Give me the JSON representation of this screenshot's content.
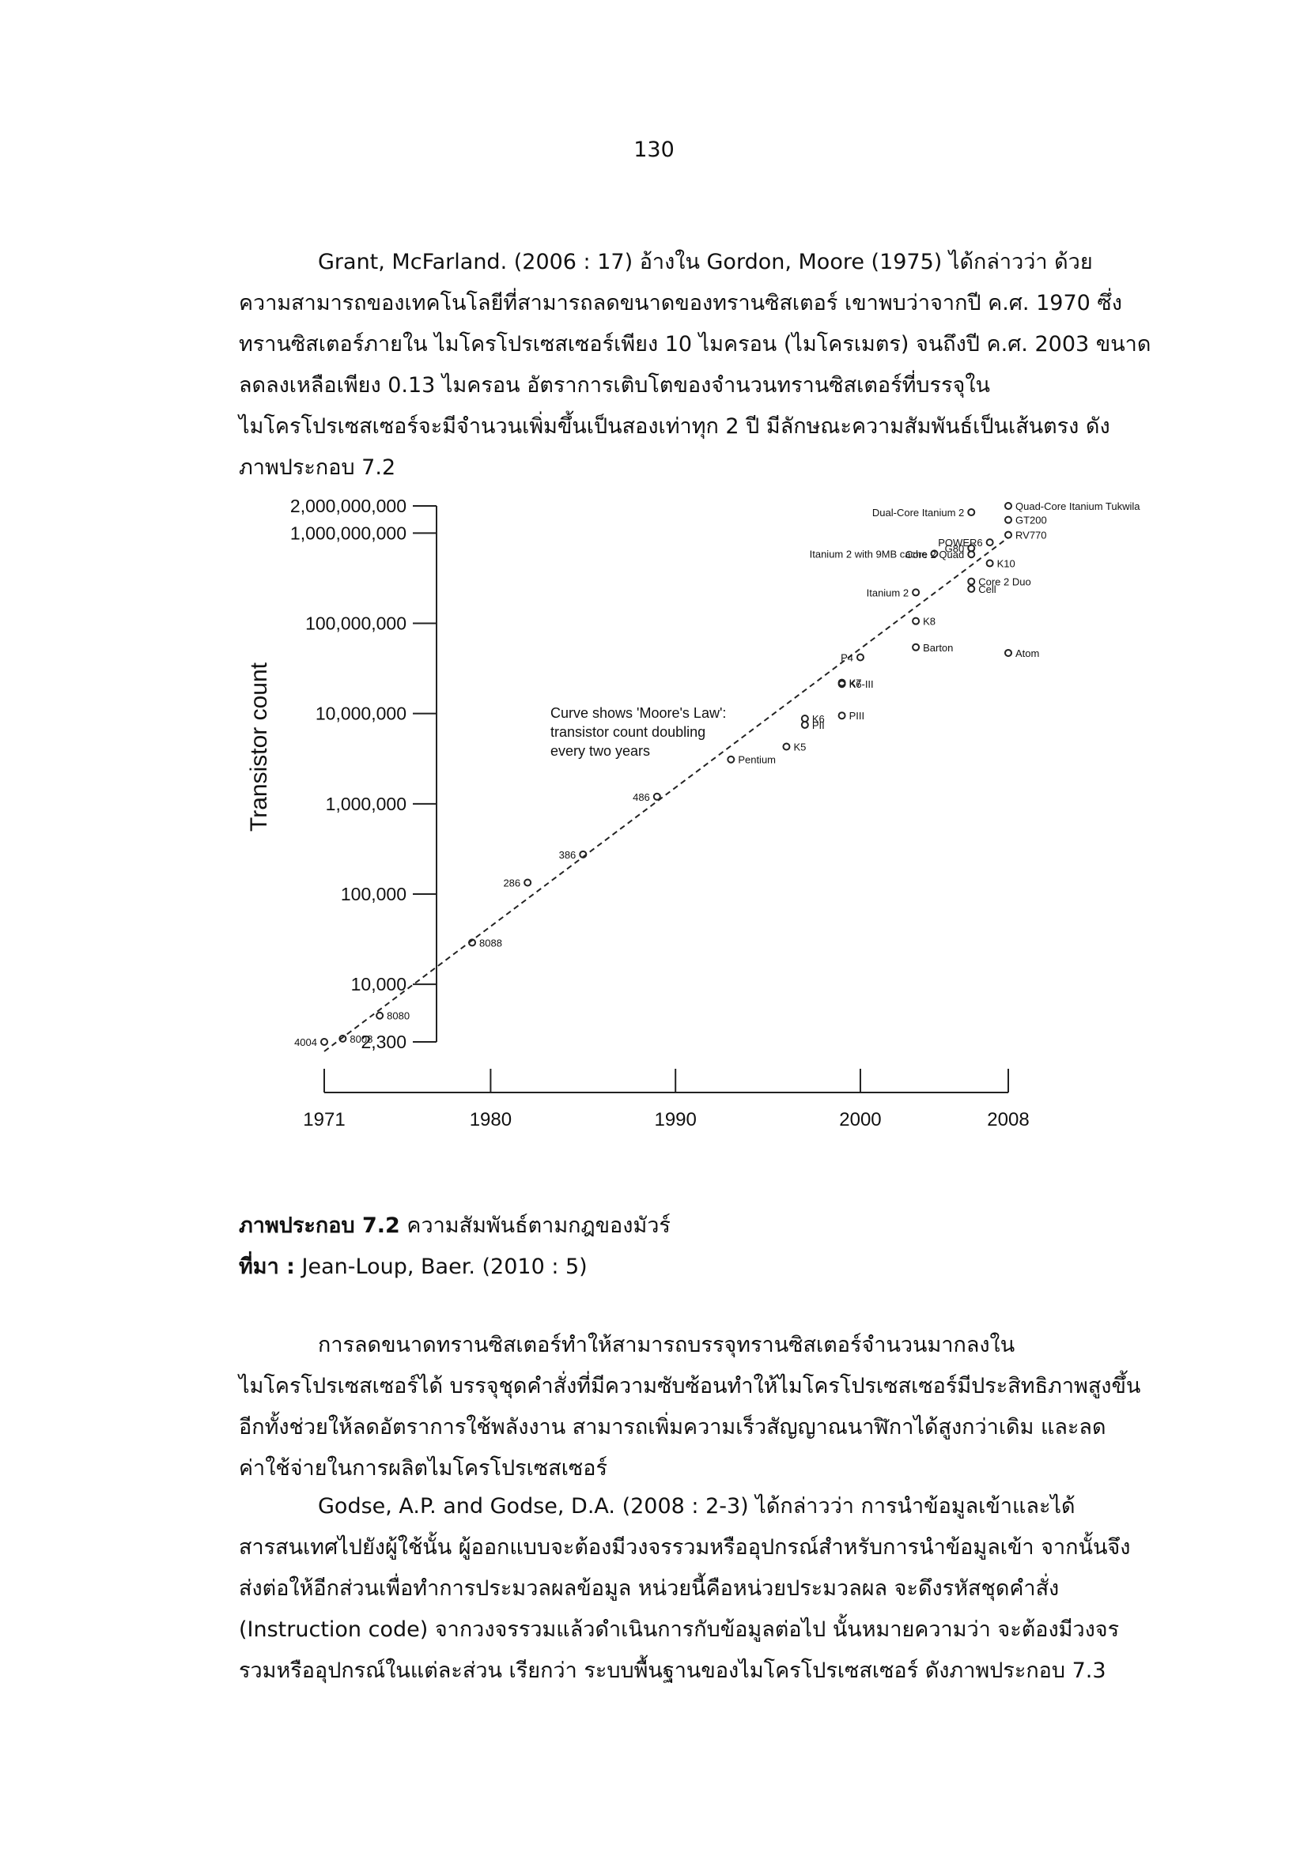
{
  "page_number": "130",
  "paragraph_1": [
    "Grant, McFarland. (2006 : 17) อ้างใน Gordon, Moore (1975) ได้กล่าวว่า ด้วย",
    "ความสามารถของเทคโนโลยีที่สามารถลดขนาดของทรานซิสเตอร์ เขาพบว่าจากปี ค.ศ. 1970 ซึ่ง",
    "ทรานซิสเตอร์ภายใน ไมโครโปรเซสเซอร์เพียง 10 ไมครอน (ไมโครเมตร) จนถึงปี ค.ศ. 2003 ขนาด",
    "ลดลงเหลือเพียง 0.13 ไมครอน อัตราการเติบโตของจำนวนทรานซิสเตอร์ที่บรรจุใน",
    "ไมโครโปรเซสเซอร์จะมีจำนวนเพิ่มขึ้นเป็นสองเท่าทุก 2 ปี มีลักษณะความสัมพันธ์เป็นเส้นตรง ดัง",
    "ภาพประกอบ 7.2"
  ],
  "figure_caption": {
    "label": "ภาพประกอบ 7.2",
    "text": " ความสัมพันธ์ตามกฎของมัวร์"
  },
  "figure_source": {
    "label": "ที่มา :",
    "text": " Jean-Loup, Baer. (2010 : 5)"
  },
  "paragraph_2": [
    "การลดขนาดทรานซิสเตอร์ทำให้สามารถบรรจุทรานซิสเตอร์จำนวนมากลงใน",
    "ไมโครโปรเซสเซอร์ได้ บรรจุชุดคำสั่งที่มีความซับซ้อนทำให้ไมโครโปรเซสเซอร์มีประสิทธิภาพสูงขึ้น",
    "อีกทั้งช่วยให้ลดอัตราการใช้พลังงาน สามารถเพิ่มความเร็วสัญญาณนาฬิกาได้สูงกว่าเดิม และลด",
    "ค่าใช้จ่ายในการผลิตไมโครโปรเซสเซอร์"
  ],
  "paragraph_3": [
    "Godse, A.P. and Godse, D.A. (2008 : 2-3) ได้กล่าวว่า การนำข้อมูลเข้าและได้",
    "สารสนเทศไปยังผู้ใช้นั้น ผู้ออกแบบจะต้องมีวงจรรวมหรืออุปกรณ์สำหรับการนำข้อมูลเข้า จากนั้นจึง",
    "ส่งต่อให้อีกส่วนเพื่อทำการประมวลผลข้อมูล หน่วยนี้คือหน่วยประมวลผล จะดึงรหัสชุดคำสั่ง",
    "(Instruction code) จากวงจรรวมแล้วดำเนินการกับข้อมูลต่อไป นั้นหมายความว่า จะต้องมีวงจร",
    "รวมหรืออุปกรณ์ในแต่ละส่วน เรียกว่า ระบบพื้นฐานของไมโครโปรเซสเซอร์ ดังภาพประกอบ 7.3"
  ],
  "chart_data": {
    "type": "scatter",
    "title": "",
    "xlabel": "",
    "ylabel": "Transistor count",
    "y_scale": "log",
    "xlim": [
      1971,
      2008
    ],
    "ylim": [
      2300,
      2000000000
    ],
    "x_ticks": [
      "1971",
      "1980",
      "1990",
      "2000",
      "2008"
    ],
    "y_ticks": [
      {
        "value": 2000000000,
        "label": "2,000,000,000"
      },
      {
        "value": 1000000000,
        "label": "1,000,000,000"
      },
      {
        "value": 100000000,
        "label": "100,000,000"
      },
      {
        "value": 10000000,
        "label": "10,000,000"
      },
      {
        "value": 1000000,
        "label": "1,000,000"
      },
      {
        "value": 100000,
        "label": "100,000"
      },
      {
        "value": 10000,
        "label": "10,000"
      },
      {
        "value": 2300,
        "label": "2,300"
      }
    ],
    "annotation": [
      "Curve shows 'Moore's Law':",
      "transistor count doubling",
      "every two years"
    ],
    "trend": {
      "style": "dashed",
      "from": {
        "x": 1971,
        "y": 2300
      },
      "to": {
        "x": 2008,
        "y": 2000000000
      }
    },
    "points": [
      {
        "label": "4004",
        "x": 1971,
        "y": 2300,
        "label_side": "left"
      },
      {
        "label": "8008",
        "x": 1972,
        "y": 2500,
        "label_side": "right"
      },
      {
        "label": "8080",
        "x": 1974,
        "y": 4500,
        "label_side": "right"
      },
      {
        "label": "8088",
        "x": 1979,
        "y": 29000,
        "label_side": "right"
      },
      {
        "label": "286",
        "x": 1982,
        "y": 134000,
        "label_side": "left"
      },
      {
        "label": "386",
        "x": 1985,
        "y": 275000,
        "label_side": "left"
      },
      {
        "label": "486",
        "x": 1989,
        "y": 1200000,
        "label_side": "left"
      },
      {
        "label": "Pentium",
        "x": 1993,
        "y": 3100000,
        "label_side": "right"
      },
      {
        "label": "K5",
        "x": 1996,
        "y": 4300000,
        "label_side": "right"
      },
      {
        "label": "K6",
        "x": 1997,
        "y": 8800000,
        "label_side": "right"
      },
      {
        "label": "PII",
        "x": 1997,
        "y": 7500000,
        "label_side": "right"
      },
      {
        "label": "PIII",
        "x": 1999,
        "y": 9500000,
        "label_side": "right"
      },
      {
        "label": "K6-III",
        "x": 1999,
        "y": 21300000,
        "label_side": "right"
      },
      {
        "label": "K7",
        "x": 1999,
        "y": 22000000,
        "label_side": "right"
      },
      {
        "label": "P4",
        "x": 2000,
        "y": 42000000,
        "label_side": "left"
      },
      {
        "label": "Barton",
        "x": 2003,
        "y": 54300000,
        "label_side": "right"
      },
      {
        "label": "K8",
        "x": 2003,
        "y": 105900000,
        "label_side": "right"
      },
      {
        "label": "Itanium 2",
        "x": 2003,
        "y": 220000000,
        "label_side": "left"
      },
      {
        "label": "Atom",
        "x": 2008,
        "y": 47000000,
        "label_side": "right"
      },
      {
        "label": "Cell",
        "x": 2006,
        "y": 241000000,
        "label_side": "right"
      },
      {
        "label": "Core 2 Duo",
        "x": 2006,
        "y": 291000000,
        "label_side": "right"
      },
      {
        "label": "Core 2 Quad",
        "x": 2006,
        "y": 582000000,
        "label_side": "left"
      },
      {
        "label": "K10",
        "x": 2007,
        "y": 463000000,
        "label_side": "right"
      },
      {
        "label": "G80",
        "x": 2006,
        "y": 681000000,
        "label_side": "left"
      },
      {
        "label": "Itanium 2 with 9MB cache",
        "x": 2004,
        "y": 592000000,
        "label_side": "left"
      },
      {
        "label": "POWER6",
        "x": 2007,
        "y": 789000000,
        "label_side": "left"
      },
      {
        "label": "RV770",
        "x": 2008,
        "y": 956000000,
        "label_side": "right"
      },
      {
        "label": "GT200",
        "x": 2008,
        "y": 1400000000,
        "label_side": "right"
      },
      {
        "label": "Dual-Core Itanium 2",
        "x": 2006,
        "y": 1700000000,
        "label_side": "left"
      },
      {
        "label": "Quad-Core Itanium Tukwila",
        "x": 2008,
        "y": 2000000000,
        "label_side": "right"
      }
    ]
  }
}
